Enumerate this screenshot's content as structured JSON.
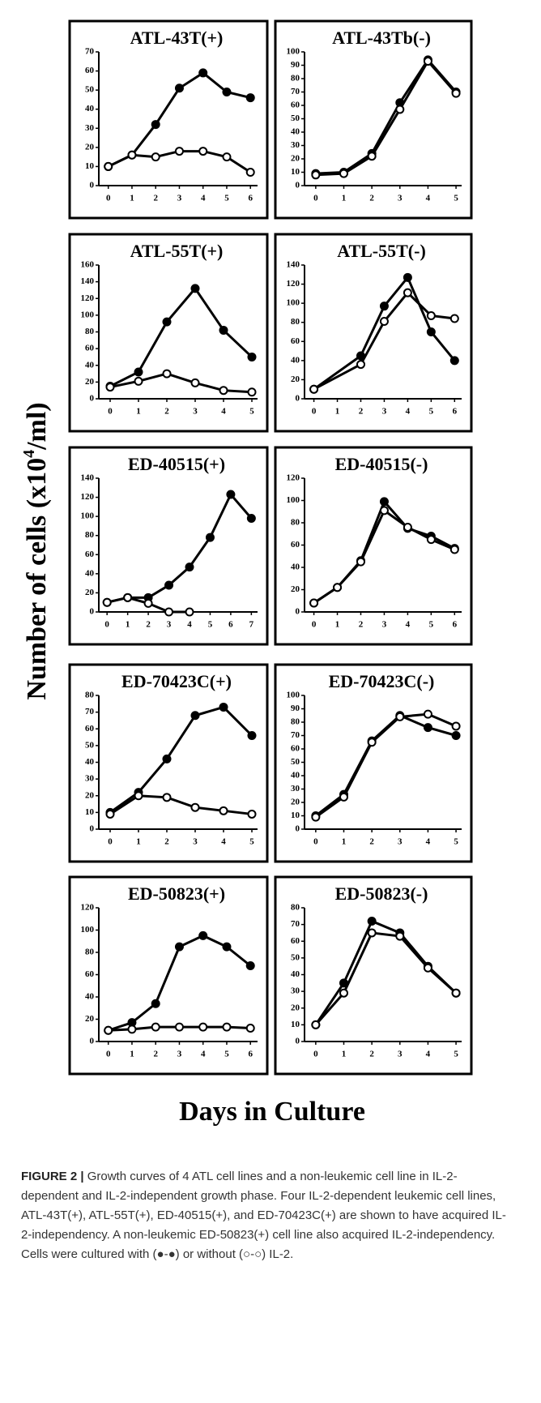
{
  "y_label": {
    "before": "Number of cells (x10",
    "sup": "4",
    "after": "/ml)"
  },
  "x_label": "Days in Culture",
  "figure_caption": {
    "label": "FIGURE 2 |",
    "text": "Growth curves of 4 ATL cell lines and a non-leukemic cell line in IL-2-dependent and IL-2-independent growth phase. Four IL-2-dependent leukemic cell lines, ATL-43T(+), ATL-55T(+), ED-40515(+), and ED-70423C(+) are shown to have acquired IL-2-independency. A non-leukemic ED-50823(+) cell line also acquired IL-2-independency. Cells were cultured with (●-●) or without (○-○) IL-2."
  },
  "chart_data": [
    {
      "type": "line",
      "title": "ATL-43T(+)",
      "x": [
        0,
        1,
        2,
        3,
        4,
        5,
        6
      ],
      "xlim": [
        -0.4,
        6.3
      ],
      "xticks": [
        0,
        1,
        2,
        3,
        4,
        5,
        6
      ],
      "ylim": [
        0,
        70
      ],
      "yticks": [
        0,
        10,
        20,
        30,
        40,
        50,
        60,
        70
      ],
      "series": [
        {
          "color": "#000",
          "marker_fill": "#000",
          "values": [
            10,
            16,
            32,
            51,
            59,
            49,
            46
          ]
        },
        {
          "color": "#000",
          "marker_fill": "#fff",
          "values": [
            10,
            16,
            15,
            18,
            18,
            15,
            7
          ]
        }
      ]
    },
    {
      "type": "line",
      "title": "ATL-43Tb(-)",
      "x": [
        0,
        1,
        2,
        3,
        4,
        5
      ],
      "xlim": [
        -0.4,
        5.2
      ],
      "xticks": [
        0,
        1,
        2,
        3,
        4,
        5
      ],
      "ylim": [
        0,
        100
      ],
      "yticks": [
        0,
        10,
        20,
        30,
        40,
        50,
        60,
        70,
        80,
        90,
        100
      ],
      "series": [
        {
          "color": "#000",
          "marker_fill": "#000",
          "values": [
            9,
            10,
            24,
            62,
            94,
            70
          ]
        },
        {
          "color": "#000",
          "marker_fill": "#fff",
          "values": [
            8,
            9,
            22,
            57,
            93,
            69
          ]
        }
      ]
    },
    {
      "type": "line",
      "title": "ATL-55T(+)",
      "x": [
        0,
        1,
        2,
        3,
        4,
        5
      ],
      "xlim": [
        -0.4,
        5.2
      ],
      "xticks": [
        0,
        1,
        2,
        3,
        4,
        5
      ],
      "ylim": [
        0,
        160
      ],
      "yticks": [
        0,
        20,
        40,
        60,
        80,
        100,
        120,
        140,
        160
      ],
      "series": [
        {
          "color": "#000",
          "marker_fill": "#000",
          "values": [
            15,
            32,
            92,
            132,
            82,
            50
          ]
        },
        {
          "color": "#000",
          "marker_fill": "#fff",
          "values": [
            14,
            21,
            30,
            19,
            10,
            8
          ]
        }
      ]
    },
    {
      "type": "line",
      "title": "ATL-55T(-)",
      "x": [
        0,
        2,
        3,
        4,
        5,
        6
      ],
      "xlim": [
        -0.4,
        6.3
      ],
      "xticks": [
        0,
        1,
        2,
        3,
        4,
        5,
        6
      ],
      "ylim": [
        0,
        140
      ],
      "yticks": [
        0,
        20,
        40,
        60,
        80,
        100,
        120,
        140
      ],
      "series": [
        {
          "color": "#000",
          "marker_fill": "#000",
          "values": [
            10,
            45,
            97,
            127,
            70,
            40
          ]
        },
        {
          "color": "#000",
          "marker_fill": "#fff",
          "values": [
            10,
            36,
            81,
            111,
            87,
            84
          ]
        }
      ]
    },
    {
      "type": "line",
      "title": "ED-40515(+)",
      "x": [
        0,
        1,
        2,
        3,
        4,
        5,
        6,
        7
      ],
      "xlim": [
        -0.4,
        7.3
      ],
      "xticks": [
        0,
        1,
        2,
        3,
        4,
        5,
        6,
        7
      ],
      "ylim": [
        0,
        140
      ],
      "yticks": [
        0,
        20,
        40,
        60,
        80,
        100,
        120,
        140
      ],
      "series": [
        {
          "color": "#000",
          "marker_fill": "#000",
          "values": [
            10,
            15,
            15,
            28,
            47,
            78,
            123,
            98
          ]
        },
        {
          "color": "#000",
          "marker_fill": "#fff",
          "values": [
            10,
            15,
            9,
            0,
            0,
            null,
            null,
            null
          ]
        }
      ]
    },
    {
      "type": "line",
      "title": "ED-40515(-)",
      "x": [
        0,
        1,
        2,
        3,
        4,
        5,
        6
      ],
      "xlim": [
        -0.4,
        6.3
      ],
      "xticks": [
        0,
        1,
        2,
        3,
        4,
        5,
        6
      ],
      "ylim": [
        0,
        120
      ],
      "yticks": [
        0,
        20,
        40,
        60,
        80,
        100,
        120
      ],
      "series": [
        {
          "color": "#000",
          "marker_fill": "#000",
          "values": [
            8,
            22,
            46,
            99,
            75,
            68,
            57
          ]
        },
        {
          "color": "#000",
          "marker_fill": "#fff",
          "values": [
            8,
            22,
            45,
            91,
            76,
            65,
            56
          ]
        }
      ]
    },
    {
      "type": "line",
      "title": "ED-70423C(+)",
      "x": [
        0,
        1,
        2,
        3,
        4,
        5
      ],
      "xlim": [
        -0.4,
        5.2
      ],
      "xticks": [
        0,
        1,
        2,
        3,
        4,
        5
      ],
      "ylim": [
        0,
        80
      ],
      "yticks": [
        0,
        10,
        20,
        30,
        40,
        50,
        60,
        70,
        80
      ],
      "series": [
        {
          "color": "#000",
          "marker_fill": "#000",
          "values": [
            10,
            22,
            42,
            68,
            73,
            56
          ]
        },
        {
          "color": "#000",
          "marker_fill": "#fff",
          "values": [
            9,
            20,
            19,
            13,
            11,
            9
          ]
        }
      ]
    },
    {
      "type": "line",
      "title": "ED-70423C(-)",
      "x": [
        0,
        1,
        2,
        3,
        4,
        5
      ],
      "xlim": [
        -0.4,
        5.2
      ],
      "xticks": [
        0,
        1,
        2,
        3,
        4,
        5
      ],
      "ylim": [
        0,
        100
      ],
      "yticks": [
        0,
        10,
        20,
        30,
        40,
        50,
        60,
        70,
        80,
        90,
        100
      ],
      "series": [
        {
          "color": "#000",
          "marker_fill": "#000",
          "values": [
            10,
            26,
            66,
            85,
            76,
            70
          ]
        },
        {
          "color": "#000",
          "marker_fill": "#fff",
          "values": [
            9,
            24,
            65,
            84,
            86,
            77
          ]
        }
      ]
    },
    {
      "type": "line",
      "title": "ED-50823(+)",
      "x": [
        0,
        1,
        2,
        3,
        4,
        5,
        6
      ],
      "xlim": [
        -0.4,
        6.3
      ],
      "xticks": [
        0,
        1,
        2,
        3,
        4,
        5,
        6
      ],
      "ylim": [
        0,
        120
      ],
      "yticks": [
        0,
        20,
        40,
        60,
        80,
        100,
        120
      ],
      "series": [
        {
          "color": "#000",
          "marker_fill": "#000",
          "values": [
            10,
            17,
            34,
            85,
            95,
            85,
            68
          ]
        },
        {
          "color": "#000",
          "marker_fill": "#fff",
          "values": [
            10,
            11,
            13,
            13,
            13,
            13,
            12
          ]
        }
      ]
    },
    {
      "type": "line",
      "title": "ED-50823(-)",
      "x": [
        0,
        1,
        2,
        3,
        4,
        5
      ],
      "xlim": [
        -0.4,
        5.2
      ],
      "xticks": [
        0,
        1,
        2,
        3,
        4,
        5
      ],
      "ylim": [
        0,
        80
      ],
      "yticks": [
        0,
        10,
        20,
        30,
        40,
        50,
        60,
        70,
        80
      ],
      "series": [
        {
          "color": "#000",
          "marker_fill": "#000",
          "values": [
            10,
            35,
            72,
            65,
            45,
            29
          ]
        },
        {
          "color": "#000",
          "marker_fill": "#fff",
          "values": [
            10,
            29,
            65,
            63,
            44,
            29
          ]
        }
      ]
    }
  ]
}
